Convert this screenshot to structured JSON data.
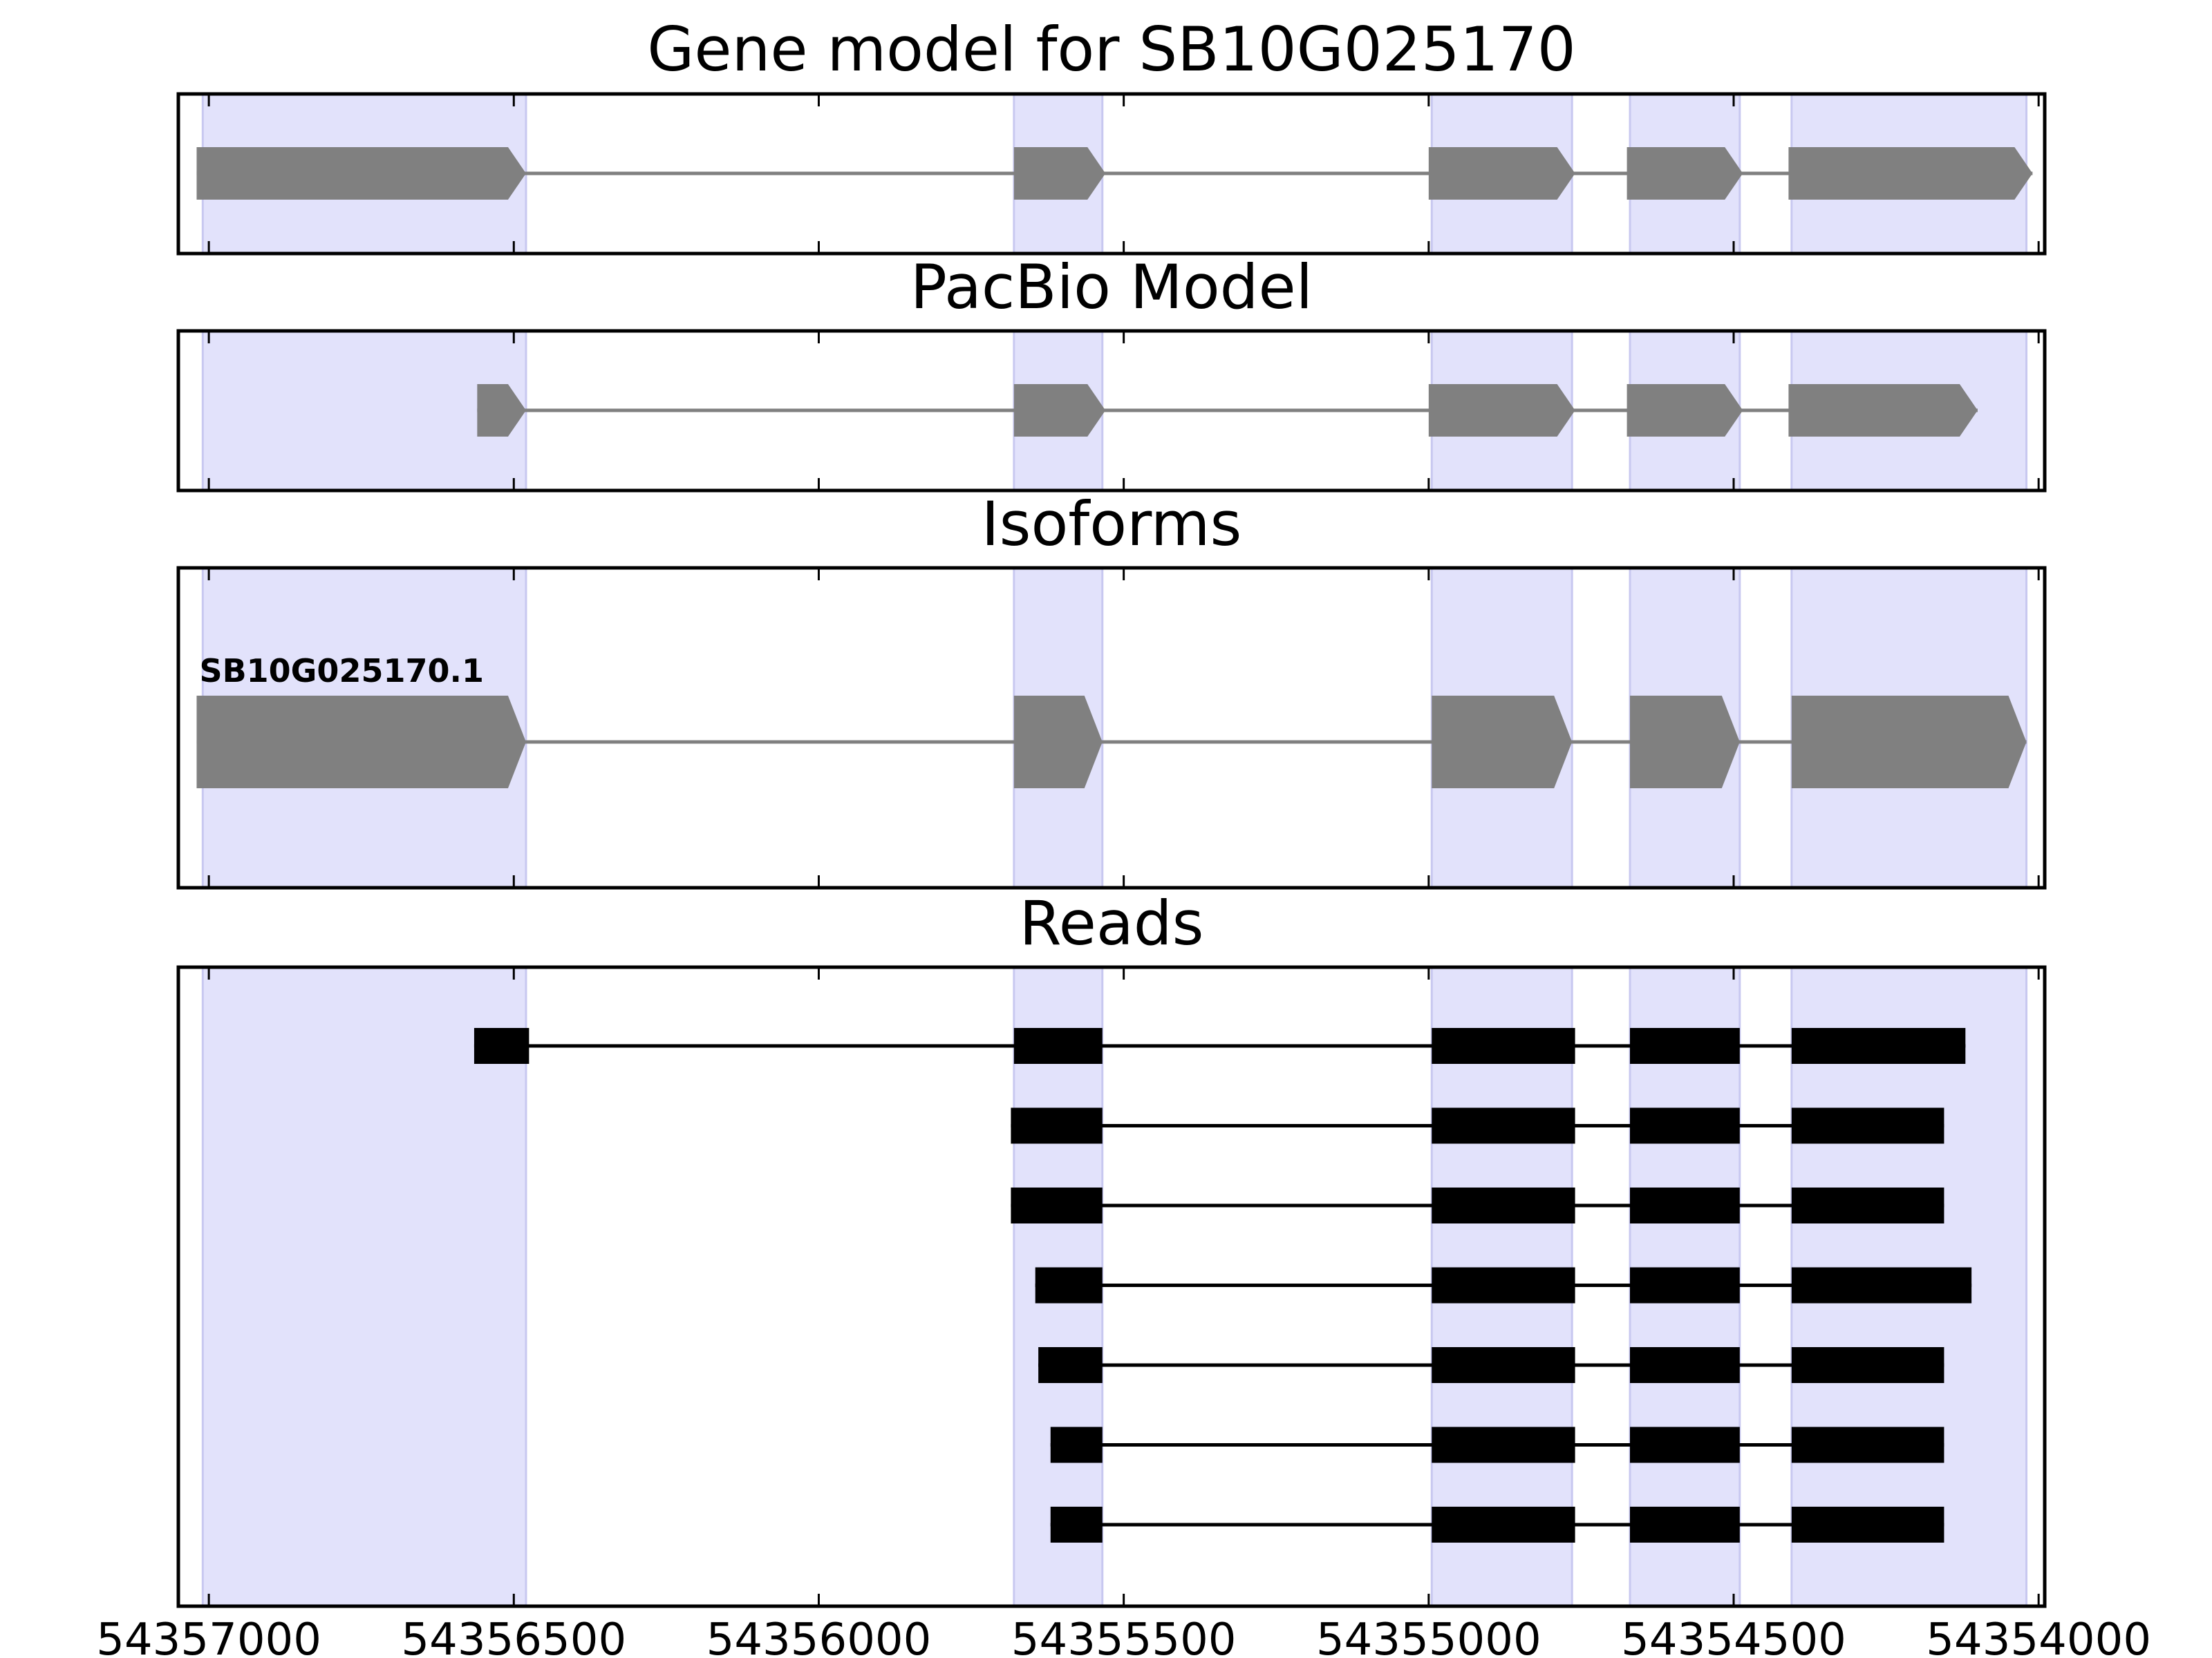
{
  "chart_data": {
    "type": "gene-structure",
    "x_axis": {
      "direction": "reversed",
      "xlim": [
        54357050,
        54353990
      ],
      "ticks": [
        54357000,
        54356500,
        54356000,
        54355500,
        54355000,
        54354500,
        54354000
      ],
      "tick_labels": [
        "54357000",
        "54356500",
        "54356000",
        "54355500",
        "54355000",
        "54354500",
        "54354000"
      ]
    },
    "colors": {
      "exon_highlight": "#e2e2fb",
      "gene_feature": "#808080",
      "read": "#000000",
      "frame": "#000000"
    },
    "highlight_exons": [
      [
        54357010,
        54356480
      ],
      [
        54355680,
        54355535
      ],
      [
        54354995,
        54354765
      ],
      [
        54354670,
        54354490
      ],
      [
        54354405,
        54354020
      ]
    ],
    "panels": [
      {
        "key": "gene",
        "title": "Gene model for SB10G025170",
        "features": [
          {
            "exons": [
              [
                54357020,
                54356480
              ],
              [
                54355680,
                54355530
              ],
              [
                54355000,
                54354760
              ],
              [
                54354675,
                54354485
              ],
              [
                54354410,
                54354010
              ]
            ]
          }
        ]
      },
      {
        "key": "pacbio",
        "title": "PacBio Model",
        "features": [
          {
            "exons": [
              [
                54356560,
                54356480
              ],
              [
                54355680,
                54355530
              ],
              [
                54355000,
                54354760
              ],
              [
                54354675,
                54354485
              ],
              [
                54354410,
                54354100
              ]
            ]
          }
        ]
      },
      {
        "key": "isoforms",
        "title": "Isoforms",
        "features": [
          {
            "label": "SB10G025170.1",
            "exons": [
              [
                54357020,
                54356480
              ],
              [
                54355680,
                54355535
              ],
              [
                54354995,
                54354765
              ],
              [
                54354670,
                54354490
              ],
              [
                54354405,
                54354020
              ]
            ]
          }
        ]
      },
      {
        "key": "reads",
        "title": "Reads",
        "features": [
          {
            "exons": [
              [
                54356565,
                54356475
              ],
              [
                54355680,
                54355535
              ],
              [
                54354995,
                54354760
              ],
              [
                54354670,
                54354490
              ],
              [
                54354405,
                54354120
              ]
            ]
          },
          {
            "exons": [
              [
                54355685,
                54355535
              ],
              [
                54354995,
                54354760
              ],
              [
                54354670,
                54354490
              ],
              [
                54354405,
                54354155
              ]
            ]
          },
          {
            "exons": [
              [
                54355685,
                54355535
              ],
              [
                54354995,
                54354760
              ],
              [
                54354670,
                54354490
              ],
              [
                54354405,
                54354155
              ]
            ]
          },
          {
            "exons": [
              [
                54355645,
                54355535
              ],
              [
                54354995,
                54354760
              ],
              [
                54354670,
                54354490
              ],
              [
                54354405,
                54354110
              ]
            ]
          },
          {
            "exons": [
              [
                54355640,
                54355535
              ],
              [
                54354995,
                54354760
              ],
              [
                54354670,
                54354490
              ],
              [
                54354405,
                54354155
              ]
            ]
          },
          {
            "exons": [
              [
                54355620,
                54355535
              ],
              [
                54354995,
                54354760
              ],
              [
                54354670,
                54354490
              ],
              [
                54354405,
                54354155
              ]
            ]
          },
          {
            "exons": [
              [
                54355620,
                54355535
              ],
              [
                54354995,
                54354760
              ],
              [
                54354670,
                54354490
              ],
              [
                54354405,
                54354155
              ]
            ]
          }
        ]
      }
    ]
  }
}
